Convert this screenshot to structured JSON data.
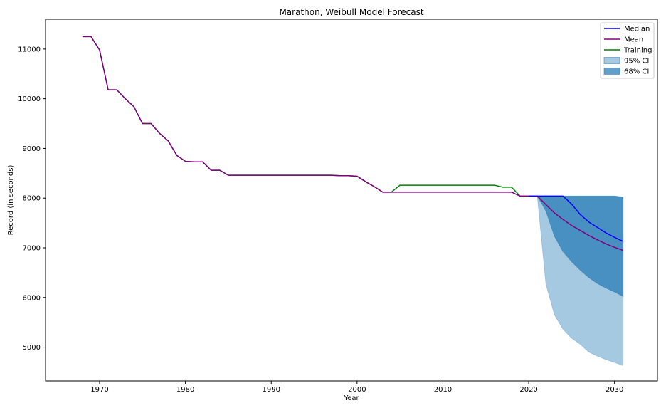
{
  "chart_data": {
    "type": "line",
    "title": "Marathon, Weibull Model Forecast",
    "xlabel": "Year",
    "ylabel": "Record (in seconds)",
    "xlim": [
      1963.7,
      2035.0
    ],
    "ylim": [
      4320,
      11600
    ],
    "x_ticks": [
      1970,
      1980,
      1990,
      2000,
      2010,
      2020,
      2030
    ],
    "y_ticks": [
      5000,
      6000,
      7000,
      8000,
      9000,
      10000,
      11000
    ],
    "grid": false,
    "legend_position": "top-right",
    "colors": {
      "median": "#0000ff",
      "mean": "#800080",
      "training": "#008000",
      "ci95": "#1f77b4",
      "ci68": "#1f77b4"
    },
    "legend": [
      {
        "key": "median",
        "label": "Median",
        "kind": "line"
      },
      {
        "key": "mean",
        "label": "Mean",
        "kind": "line"
      },
      {
        "key": "training",
        "label": "Training",
        "kind": "line"
      },
      {
        "key": "ci95",
        "label": "95% CI",
        "kind": "patch"
      },
      {
        "key": "ci68",
        "label": "68% CI",
        "kind": "patch"
      }
    ],
    "series": [
      {
        "key": "training",
        "name": "Training",
        "x": [
          1968,
          1969,
          1970,
          1971,
          1972,
          1973,
          1974,
          1975,
          1976,
          1977,
          1978,
          1979,
          1980,
          1981,
          1982,
          1983,
          1984,
          1985,
          1986,
          1987,
          1988,
          1989,
          1990,
          1991,
          1992,
          1993,
          1994,
          1995,
          1996,
          1997,
          1998,
          1999,
          2000,
          2001,
          2002,
          2003,
          2004,
          2005,
          2006,
          2007,
          2008,
          2009,
          2010,
          2011,
          2012,
          2013,
          2014,
          2015,
          2016,
          2017,
          2018,
          2019,
          2020,
          2021
        ],
        "y": [
          11250,
          11250,
          10980,
          10180,
          10180,
          10000,
          9840,
          9500,
          9500,
          9300,
          9150,
          8860,
          8740,
          8730,
          8730,
          8560,
          8560,
          8460,
          8460,
          8460,
          8460,
          8460,
          8460,
          8460,
          8460,
          8460,
          8460,
          8460,
          8460,
          8460,
          8450,
          8450,
          8440,
          8330,
          8230,
          8120,
          8120,
          8260,
          8260,
          8260,
          8260,
          8260,
          8260,
          8260,
          8260,
          8260,
          8260,
          8260,
          8260,
          8220,
          8220,
          8040,
          8040,
          8040
        ]
      },
      {
        "key": "mean",
        "name": "Mean",
        "x": [
          1968,
          1969,
          1970,
          1971,
          1972,
          1973,
          1974,
          1975,
          1976,
          1977,
          1978,
          1979,
          1980,
          1981,
          1982,
          1983,
          1984,
          1985,
          1986,
          1987,
          1988,
          1989,
          1990,
          1991,
          1992,
          1993,
          1994,
          1995,
          1996,
          1997,
          1998,
          1999,
          2000,
          2001,
          2002,
          2003,
          2004,
          2005,
          2006,
          2007,
          2008,
          2009,
          2010,
          2011,
          2012,
          2013,
          2014,
          2015,
          2016,
          2017,
          2018,
          2019,
          2020,
          2021,
          2022,
          2023,
          2024,
          2025,
          2026,
          2027,
          2028,
          2029,
          2030,
          2031
        ],
        "y": [
          11250,
          11250,
          10980,
          10180,
          10180,
          10000,
          9840,
          9500,
          9500,
          9300,
          9150,
          8860,
          8740,
          8730,
          8730,
          8560,
          8560,
          8460,
          8460,
          8460,
          8460,
          8460,
          8460,
          8460,
          8460,
          8460,
          8460,
          8460,
          8460,
          8460,
          8450,
          8450,
          8440,
          8330,
          8230,
          8120,
          8120,
          8120,
          8120,
          8120,
          8120,
          8120,
          8120,
          8120,
          8120,
          8120,
          8120,
          8120,
          8120,
          8120,
          8120,
          8040,
          8040,
          8040,
          7870,
          7700,
          7570,
          7450,
          7350,
          7250,
          7160,
          7080,
          7010,
          6950
        ]
      },
      {
        "key": "median",
        "name": "Median",
        "x": [
          2020,
          2021,
          2022,
          2023,
          2024,
          2025,
          2026,
          2027,
          2028,
          2029,
          2030,
          2031
        ],
        "y": [
          8040,
          8040,
          8040,
          8040,
          8040,
          7880,
          7670,
          7520,
          7410,
          7300,
          7210,
          7130
        ]
      }
    ],
    "bands": [
      {
        "key": "ci95",
        "name": "95% CI",
        "x": [
          2021,
          2022,
          2023,
          2024,
          2025,
          2026,
          2027,
          2028,
          2029,
          2030,
          2031
        ],
        "upper": [
          8040,
          8040,
          8040,
          8040,
          8040,
          8040,
          8040,
          8040,
          8040,
          8040,
          8020
        ],
        "lower": [
          8040,
          6270,
          5650,
          5360,
          5180,
          5060,
          4900,
          4820,
          4750,
          4690,
          4630
        ]
      },
      {
        "key": "ci68",
        "name": "68% CI",
        "x": [
          2021,
          2022,
          2023,
          2024,
          2025,
          2026,
          2027,
          2028,
          2029,
          2030,
          2031
        ],
        "upper": [
          8040,
          8040,
          8040,
          8040,
          8040,
          8040,
          8040,
          8040,
          8040,
          8040,
          8020
        ],
        "lower": [
          8040,
          7740,
          7230,
          6920,
          6720,
          6550,
          6400,
          6280,
          6190,
          6110,
          6020
        ]
      }
    ]
  }
}
